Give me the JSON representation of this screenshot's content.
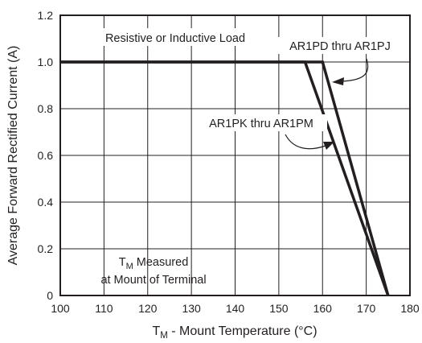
{
  "chart_data": {
    "type": "line",
    "xlabel": "T_M - Mount Temperature (°C)",
    "xlabel_main": "T",
    "xlabel_sub": "M",
    "xlabel_rest": " - Mount Temperature (°C)",
    "ylabel": "Average Forward Rectified Current (A)",
    "xlim": [
      100,
      180
    ],
    "ylim": [
      0,
      1.2
    ],
    "x_ticks": [
      100,
      110,
      120,
      130,
      140,
      150,
      160,
      170,
      180
    ],
    "y_ticks": [
      0,
      0.2,
      0.4,
      0.6,
      0.8,
      1.0,
      1.2
    ],
    "x_tick_labels": [
      "100",
      "110",
      "120",
      "130",
      "140",
      "150",
      "160",
      "170",
      "180"
    ],
    "y_tick_labels": [
      "0",
      "0.2",
      "0.4",
      "0.6",
      "0.8",
      "1.0",
      "1.2"
    ],
    "grid": true,
    "series": [
      {
        "name": "AR1PD thru AR1PJ",
        "color": "#231f20",
        "points": [
          [
            100,
            1.0
          ],
          [
            160,
            1.0
          ],
          [
            175,
            0
          ]
        ]
      },
      {
        "name": "AR1PK thru AR1PM",
        "color": "#231f20",
        "points": [
          [
            100,
            1.0
          ],
          [
            156,
            1.0
          ],
          [
            175,
            0
          ]
        ]
      }
    ],
    "annotations": {
      "load": "Resistive or Inductive Load",
      "measured_main": "T",
      "measured_sub": "M",
      "measured_rest": " Measured",
      "measured_line2": "at Mount of Terminal"
    }
  }
}
